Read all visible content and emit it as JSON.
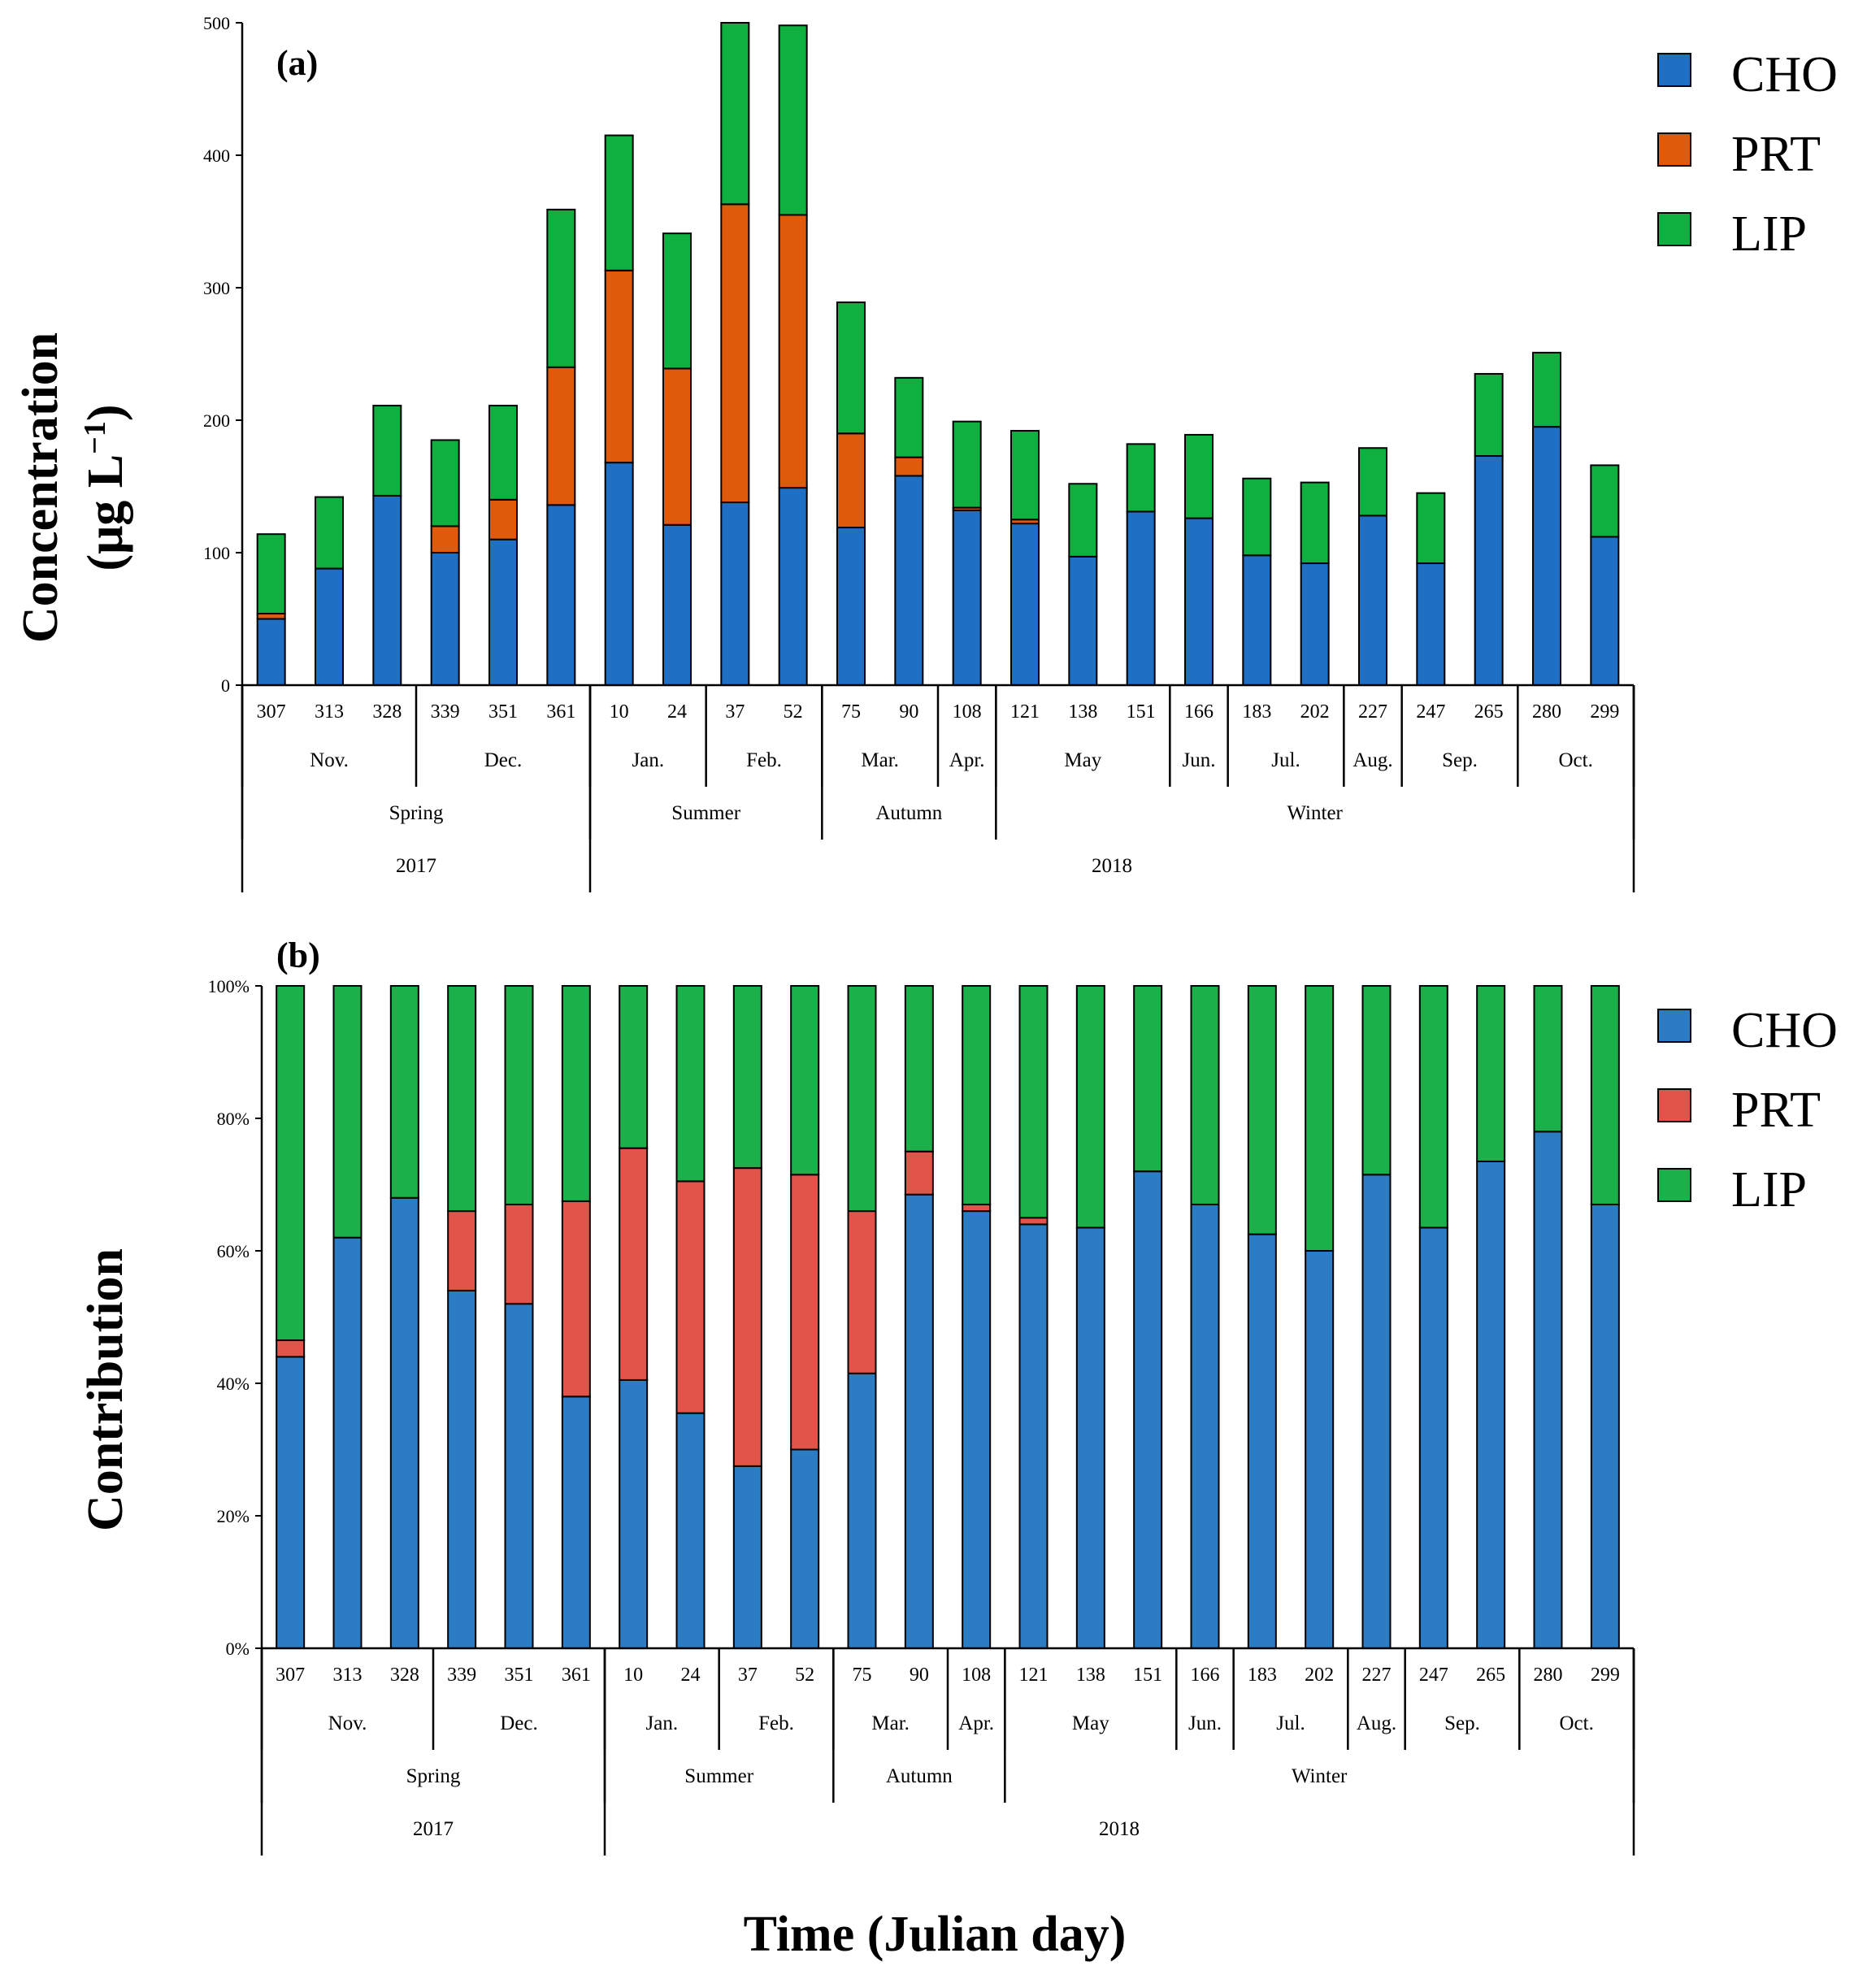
{
  "figure": {
    "xlabel": "Time (Julian day)"
  },
  "chart_data": [
    {
      "type": "bar",
      "stacked": true,
      "panel_label": "(a)",
      "ylabel_line1": "Concentration",
      "ylabel_line2": "(μg L",
      "ylabel_sup": "−1",
      "ylabel_close": ")",
      "ylim": [
        0,
        500
      ],
      "yticks": [
        0,
        100,
        200,
        300,
        400,
        500
      ],
      "ytick_labels": [
        "0",
        "100",
        "200",
        "300",
        "400",
        "500"
      ],
      "categories": [
        "307",
        "313",
        "328",
        "339",
        "351",
        "361",
        "10",
        "24",
        "37",
        "52",
        "75",
        "90",
        "108",
        "121",
        "138",
        "151",
        "166",
        "183",
        "202",
        "227",
        "247",
        "265",
        "280",
        "299"
      ],
      "series": [
        {
          "name": "CHO",
          "color": "#1f6fc5",
          "values": [
            50,
            88,
            143,
            100,
            110,
            136,
            168,
            121,
            138,
            149,
            119,
            158,
            132,
            122,
            97,
            131,
            126,
            98,
            92,
            128,
            92,
            173,
            195,
            112
          ]
        },
        {
          "name": "PRT",
          "color": "#e05a0c",
          "values": [
            4,
            0,
            0,
            20,
            30,
            104,
            145,
            118,
            225,
            206,
            71,
            14,
            2,
            3,
            0,
            0,
            0,
            0,
            0,
            0,
            0,
            0,
            0,
            0
          ]
        },
        {
          "name": "LIP",
          "color": "#10b040",
          "values": [
            60,
            54,
            68,
            65,
            71,
            119,
            102,
            102,
            137,
            143,
            99,
            60,
            65,
            67,
            55,
            51,
            63,
            58,
            61,
            51,
            53,
            62,
            56,
            54
          ]
        }
      ],
      "months": [
        {
          "label": "Nov.",
          "count": 3
        },
        {
          "label": "Dec.",
          "count": 3
        },
        {
          "label": "Jan.",
          "count": 2
        },
        {
          "label": "Feb.",
          "count": 2
        },
        {
          "label": "Mar.",
          "count": 2
        },
        {
          "label": "Apr.",
          "count": 1
        },
        {
          "label": "May",
          "count": 3
        },
        {
          "label": "Jun.",
          "count": 1
        },
        {
          "label": "Jul.",
          "count": 2
        },
        {
          "label": "Aug.",
          "count": 1
        },
        {
          "label": "Sep.",
          "count": 2
        },
        {
          "label": "Oct.",
          "count": 2
        }
      ],
      "seasons": [
        {
          "label": "Spring",
          "count": 6
        },
        {
          "label": "Summer",
          "count": 4
        },
        {
          "label": "Autumn",
          "count": 3
        },
        {
          "label": "Winter",
          "count": 11
        }
      ],
      "years": [
        {
          "label": "2017",
          "count": 6
        },
        {
          "label": "2018",
          "count": 18
        }
      ],
      "legend": [
        "CHO",
        "PRT",
        "LIP"
      ]
    },
    {
      "type": "bar",
      "stacked": true,
      "percent": true,
      "panel_label": "(b)",
      "ylabel_line1": "Contribution",
      "ylim": [
        0,
        100
      ],
      "yticks": [
        0,
        20,
        40,
        60,
        80,
        100
      ],
      "ytick_labels": [
        "0%",
        "20%",
        "40%",
        "60%",
        "80%",
        "100%"
      ],
      "categories": [
        "307",
        "313",
        "328",
        "339",
        "351",
        "361",
        "10",
        "24",
        "37",
        "52",
        "75",
        "90",
        "108",
        "121",
        "138",
        "151",
        "166",
        "183",
        "202",
        "227",
        "247",
        "265",
        "280",
        "299"
      ],
      "series": [
        {
          "name": "CHO",
          "color": "#2b7cc2",
          "values": [
            44,
            62,
            68,
            54,
            52,
            38,
            40.5,
            35.5,
            27.5,
            30,
            41.5,
            68.5,
            66,
            64,
            63.5,
            72,
            67,
            62.5,
            60,
            71.5,
            63.5,
            73.5,
            78,
            67
          ]
        },
        {
          "name": "PRT",
          "color": "#e1544a",
          "values": [
            2.5,
            0,
            0,
            12,
            15,
            29.5,
            35,
            35,
            45,
            41.5,
            24.5,
            6.5,
            1,
            1,
            0,
            0,
            0,
            0,
            0,
            0,
            0,
            0,
            0,
            0
          ]
        },
        {
          "name": "LIP",
          "color": "#1cb04a",
          "values": [
            53.5,
            38,
            32,
            34,
            33,
            32.5,
            24.5,
            29.5,
            27.5,
            28.5,
            34,
            25,
            33,
            35,
            36.5,
            28,
            33,
            37.5,
            40,
            28.5,
            36.5,
            26.5,
            22,
            33
          ]
        }
      ],
      "months": [
        {
          "label": "Nov.",
          "count": 3
        },
        {
          "label": "Dec.",
          "count": 3
        },
        {
          "label": "Jan.",
          "count": 2
        },
        {
          "label": "Feb.",
          "count": 2
        },
        {
          "label": "Mar.",
          "count": 2
        },
        {
          "label": "Apr.",
          "count": 1
        },
        {
          "label": "May",
          "count": 3
        },
        {
          "label": "Jun.",
          "count": 1
        },
        {
          "label": "Jul.",
          "count": 2
        },
        {
          "label": "Aug.",
          "count": 1
        },
        {
          "label": "Sep.",
          "count": 2
        },
        {
          "label": "Oct.",
          "count": 2
        }
      ],
      "seasons": [
        {
          "label": "Spring",
          "count": 6
        },
        {
          "label": "Summer",
          "count": 4
        },
        {
          "label": "Autumn",
          "count": 3
        },
        {
          "label": "Winter",
          "count": 11
        }
      ],
      "years": [
        {
          "label": "2017",
          "count": 6
        },
        {
          "label": "2018",
          "count": 18
        }
      ],
      "legend": [
        "CHO",
        "PRT",
        "LIP"
      ]
    }
  ]
}
